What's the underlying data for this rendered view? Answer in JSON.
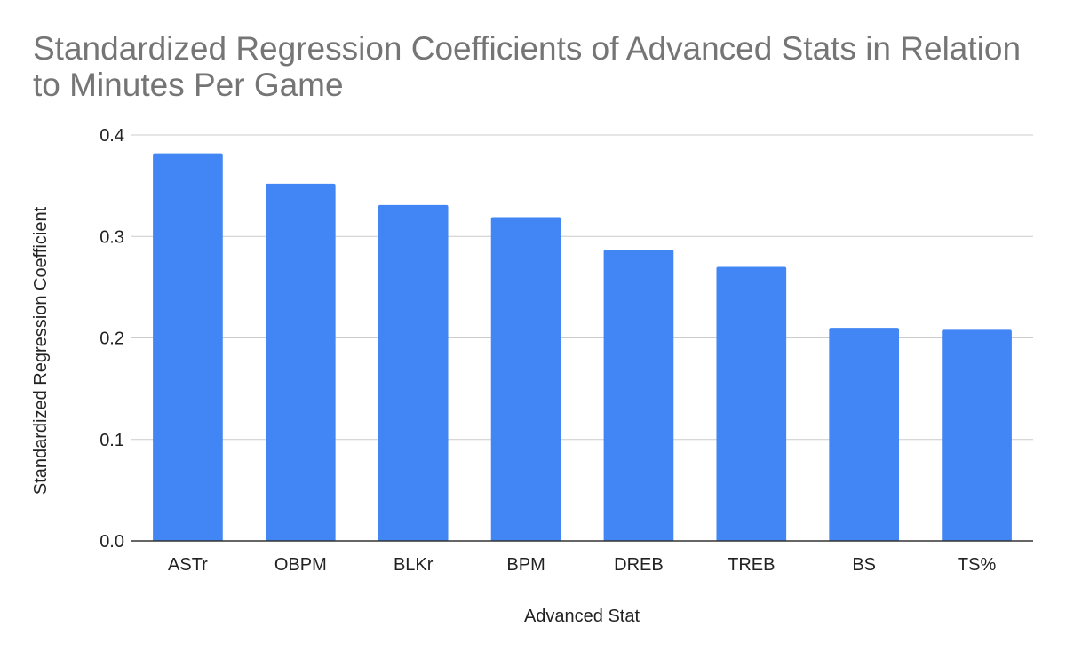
{
  "chart_data": {
    "type": "bar",
    "title": "Standardized Regression Coefficients of Advanced Stats in Relation to Minutes Per Game",
    "xlabel": "Advanced Stat",
    "ylabel": "Standardized Regression Coefficient",
    "categories": [
      "ASTr",
      "OBPM",
      "BLKr",
      "BPM",
      "DREB",
      "TREB",
      "BS",
      "TS%"
    ],
    "values": [
      0.382,
      0.352,
      0.331,
      0.319,
      0.287,
      0.27,
      0.21,
      0.208
    ],
    "ylim": [
      0,
      0.4
    ],
    "yticks": [
      "0.0",
      "0.1",
      "0.2",
      "0.3",
      "0.4"
    ],
    "grid": true,
    "legend": "none",
    "bar_color": "#4285f4",
    "grid_color": "#cccccc",
    "axis_color": "#333333",
    "title_color": "#757575"
  }
}
